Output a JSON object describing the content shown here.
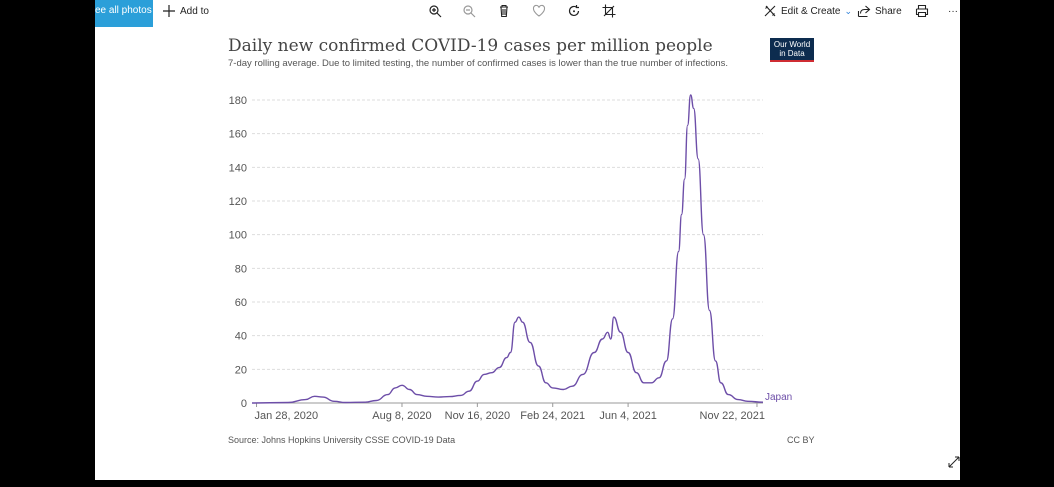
{
  "toolbar": {
    "see_all_label": "ee all photos",
    "add_to_label": "Add to",
    "edit_create_label": "Edit & Create",
    "share_label": "Share",
    "more_label": "···"
  },
  "chart_data": {
    "type": "line",
    "title": "Daily new confirmed COVID-19 cases per million people",
    "subtitle": "7-day rolling average. Due to limited testing, the number of confirmed cases is lower than the true number of infections.",
    "logo_text": [
      "Our World",
      "in Data"
    ],
    "source": "Source: Johns Hopkins University CSSE COVID-19 Data",
    "license": "CC BY",
    "ylim": [
      0,
      180
    ],
    "yticks": [
      0,
      20,
      40,
      60,
      80,
      100,
      120,
      140,
      160,
      180
    ],
    "xlim": [
      "2020-01-22",
      "2021-11-30"
    ],
    "xticks": [
      "Jan 28, 2020",
      "Aug 8, 2020",
      "Nov 16, 2020",
      "Feb 24, 2021",
      "Jun 4, 2021",
      "Nov 22, 2021"
    ],
    "xtick_dates": [
      "2020-01-28",
      "2020-08-08",
      "2020-11-16",
      "2021-02-24",
      "2021-06-04",
      "2021-11-22"
    ],
    "grid": true,
    "series": [
      {
        "name": "Japan",
        "color": "#6d4ea8",
        "points": [
          [
            "2020-01-22",
            0
          ],
          [
            "2020-03-10",
            0.3
          ],
          [
            "2020-04-02",
            2
          ],
          [
            "2020-04-14",
            4
          ],
          [
            "2020-04-25",
            3.5
          ],
          [
            "2020-05-10",
            1
          ],
          [
            "2020-05-25",
            0.3
          ],
          [
            "2020-06-20",
            0.5
          ],
          [
            "2020-07-05",
            1.5
          ],
          [
            "2020-07-20",
            5
          ],
          [
            "2020-07-30",
            9
          ],
          [
            "2020-08-08",
            10.5
          ],
          [
            "2020-08-18",
            8
          ],
          [
            "2020-08-28",
            5
          ],
          [
            "2020-09-10",
            4
          ],
          [
            "2020-09-25",
            3.5
          ],
          [
            "2020-10-10",
            3.8
          ],
          [
            "2020-10-25",
            4.5
          ],
          [
            "2020-11-05",
            7
          ],
          [
            "2020-11-16",
            13
          ],
          [
            "2020-11-25",
            17
          ],
          [
            "2020-12-05",
            18
          ],
          [
            "2020-12-15",
            21
          ],
          [
            "2020-12-25",
            27
          ],
          [
            "2020-12-30",
            30
          ],
          [
            "2021-01-05",
            48
          ],
          [
            "2021-01-10",
            51
          ],
          [
            "2021-01-15",
            48
          ],
          [
            "2021-01-25",
            36
          ],
          [
            "2021-02-05",
            22
          ],
          [
            "2021-02-15",
            12
          ],
          [
            "2021-02-24",
            9
          ],
          [
            "2021-03-10",
            8
          ],
          [
            "2021-03-22",
            10
          ],
          [
            "2021-04-05",
            17
          ],
          [
            "2021-04-20",
            30
          ],
          [
            "2021-05-01",
            38
          ],
          [
            "2021-05-08",
            42
          ],
          [
            "2021-05-12",
            38
          ],
          [
            "2021-05-16",
            51
          ],
          [
            "2021-05-25",
            42
          ],
          [
            "2021-06-04",
            30
          ],
          [
            "2021-06-15",
            18
          ],
          [
            "2021-06-25",
            12
          ],
          [
            "2021-07-05",
            12
          ],
          [
            "2021-07-15",
            15
          ],
          [
            "2021-07-25",
            25
          ],
          [
            "2021-08-02",
            50
          ],
          [
            "2021-08-10",
            90
          ],
          [
            "2021-08-14",
            112
          ],
          [
            "2021-08-18",
            133
          ],
          [
            "2021-08-22",
            165
          ],
          [
            "2021-08-26",
            183
          ],
          [
            "2021-08-30",
            175
          ],
          [
            "2021-09-05",
            145
          ],
          [
            "2021-09-12",
            100
          ],
          [
            "2021-09-20",
            55
          ],
          [
            "2021-09-28",
            25
          ],
          [
            "2021-10-05",
            12
          ],
          [
            "2021-10-15",
            5
          ],
          [
            "2021-10-28",
            2
          ],
          [
            "2021-11-10",
            1
          ],
          [
            "2021-11-30",
            0.5
          ]
        ]
      }
    ]
  }
}
